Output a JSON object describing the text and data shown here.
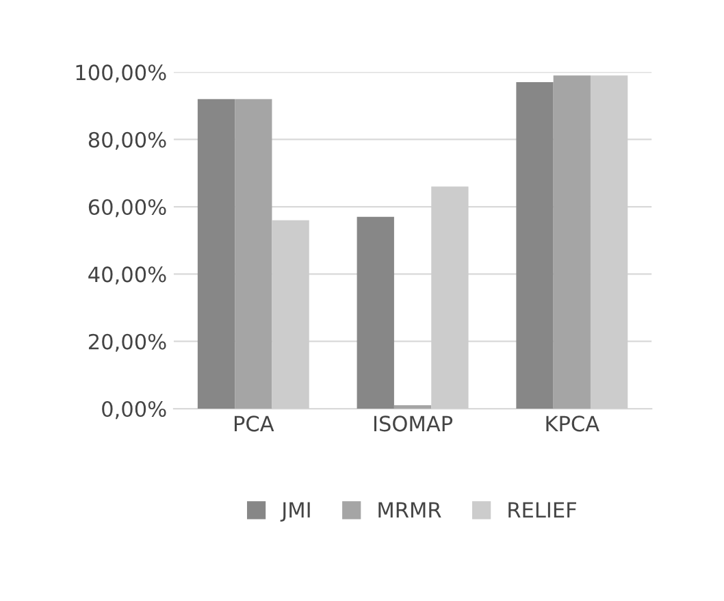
{
  "chart_data": {
    "type": "bar",
    "categories": [
      "PCA",
      "ISOMAP",
      "KPCA"
    ],
    "series": [
      {
        "name": "JMI",
        "color": "#878787",
        "values": [
          92,
          57,
          97
        ]
      },
      {
        "name": "MRMR",
        "color": "#a5a5a5",
        "values": [
          92,
          1,
          99
        ]
      },
      {
        "name": "RELIEF",
        "color": "#cccccc",
        "values": [
          56,
          66,
          99
        ]
      }
    ],
    "ylim": [
      0,
      100
    ],
    "yticks": [
      {
        "value": 0,
        "label": "0,00%"
      },
      {
        "value": 20,
        "label": "20,00%"
      },
      {
        "value": 40,
        "label": "40,00%"
      },
      {
        "value": 60,
        "label": "60,00%"
      },
      {
        "value": 80,
        "label": "80,00%"
      },
      {
        "value": 100,
        "label": "100,00%"
      }
    ],
    "grid": "y",
    "legend": "bottom"
  }
}
